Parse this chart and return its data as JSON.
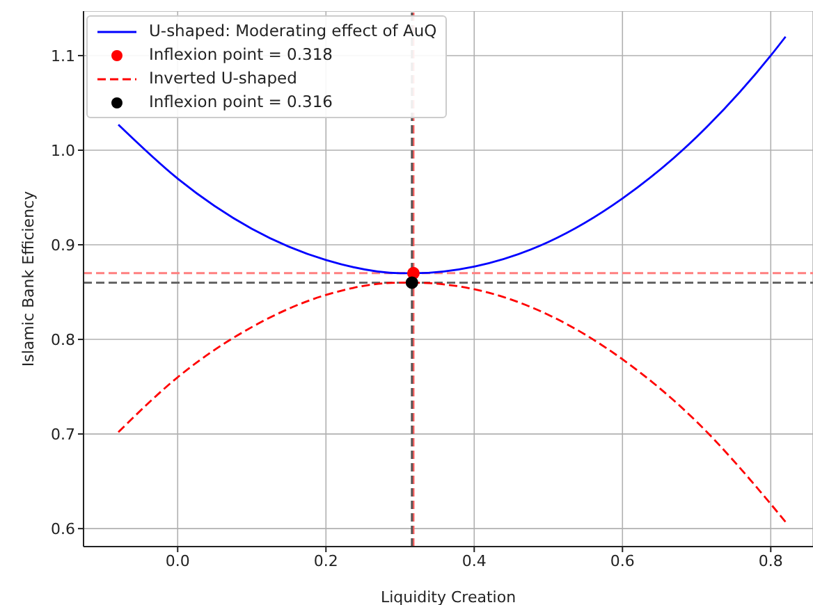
{
  "chart_data": {
    "type": "line",
    "xlabel": "Liquidity Creation",
    "ylabel": "Islamic Bank Efficiency",
    "xlim": [
      -0.127,
      0.857
    ],
    "ylim": [
      0.581,
      1.147
    ],
    "xticks": [
      {
        "value": 0,
        "label": "0.0"
      },
      0.2,
      0.4,
      0.6,
      0.8
    ],
    "yticks": [
      0.6,
      0.7,
      0.8,
      0.9,
      {
        "value": 1,
        "label": "1.0"
      },
      1.1
    ],
    "grid": true,
    "legend": "top left",
    "series": [
      {
        "name": "U-shaped: Moderating effect of AuQ",
        "color": "#0000ff",
        "line_style": "solid",
        "marker": "none",
        "x": [
          -0.08,
          0,
          0.1,
          0.2,
          0.3,
          0.318,
          0.4,
          0.5,
          0.6,
          0.7,
          0.8,
          0.82
        ],
        "values": [
          1.027,
          0.97,
          0.917,
          0.884,
          0.87,
          0.87,
          0.877,
          0.903,
          0.949,
          1.014,
          1.1,
          1.12
        ]
      },
      {
        "name": "Inflexion point  = 0.318",
        "type": "scatter",
        "color": "#ff0000",
        "marker": "circle",
        "x": [
          0.318
        ],
        "values": [
          0.87
        ]
      },
      {
        "name": "Inverted U-shaped",
        "color": "#ff0000",
        "line_style": "dashed",
        "marker": "none",
        "x": [
          -0.08,
          0,
          0.1,
          0.2,
          0.3,
          0.316,
          0.4,
          0.5,
          0.6,
          0.7,
          0.8,
          0.82
        ],
        "values": [
          0.702,
          0.76,
          0.813,
          0.847,
          0.86,
          0.86,
          0.853,
          0.826,
          0.779,
          0.713,
          0.626,
          0.607
        ]
      },
      {
        "name": "Inflexion point = 0.316",
        "type": "scatter",
        "color": "#000000",
        "marker": "circle",
        "x": [
          0.316
        ],
        "values": [
          0.86
        ]
      }
    ],
    "ref_lines": [
      {
        "axis": "y",
        "value": 0.87,
        "color": "#ff7f7f",
        "line_style": "dashed"
      },
      {
        "axis": "y",
        "value": 0.86,
        "color": "#666666",
        "line_style": "dashed"
      },
      {
        "axis": "x",
        "value": 0.318,
        "color": "#ff6060",
        "line_style": "dashed"
      },
      {
        "axis": "x",
        "value": 0.316,
        "color": "#555555",
        "line_style": "dashed"
      }
    ]
  }
}
